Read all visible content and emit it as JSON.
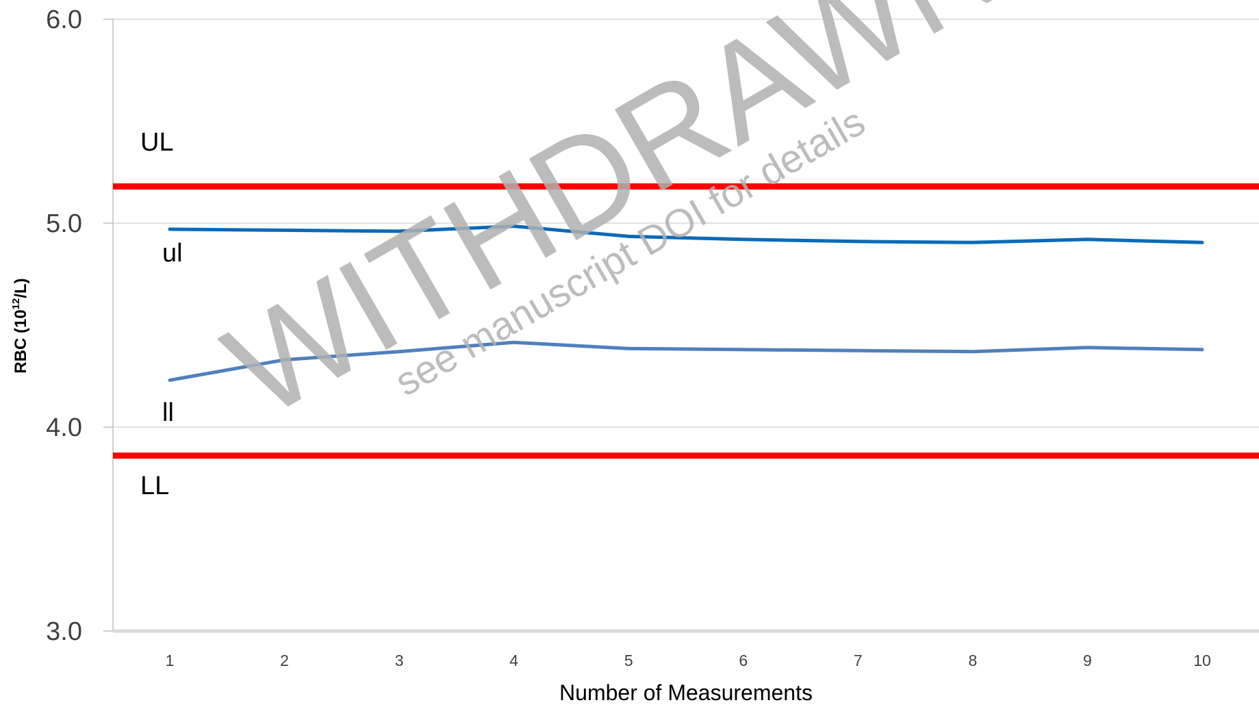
{
  "chart_data": {
    "type": "line",
    "title": "",
    "xlabel": "Number of Measurements",
    "ylabel_main": "RBC (10",
    "ylabel_sup": "12",
    "ylabel_tail": "/L)",
    "x": [
      1,
      2,
      3,
      4,
      5,
      6,
      7,
      8,
      9,
      10
    ],
    "ylim": [
      3.0,
      6.0
    ],
    "yticks": [
      "3.0",
      "4.0",
      "5.0",
      "6.0"
    ],
    "grid": true,
    "legend": "none",
    "series": [
      {
        "name": "ul",
        "color": "#0a6ab8",
        "values": [
          4.97,
          4.965,
          4.96,
          4.985,
          4.935,
          4.92,
          4.91,
          4.905,
          4.92,
          4.905
        ]
      },
      {
        "name": "ll",
        "color": "#4f80bd",
        "values": [
          4.23,
          4.33,
          4.37,
          4.415,
          4.385,
          4.38,
          4.375,
          4.37,
          4.39,
          4.38
        ]
      }
    ],
    "limits": [
      {
        "name": "UL",
        "value": 5.18,
        "color": "#ff0000"
      },
      {
        "name": "LL",
        "value": 3.86,
        "color": "#ff0000"
      }
    ],
    "annotations": {
      "UL": "UL",
      "ul": "ul",
      "ll": "ll",
      "LL": "LL"
    }
  },
  "watermark": {
    "main": "WITHDRAWN",
    "sub": "see manuscript DOI for details"
  }
}
